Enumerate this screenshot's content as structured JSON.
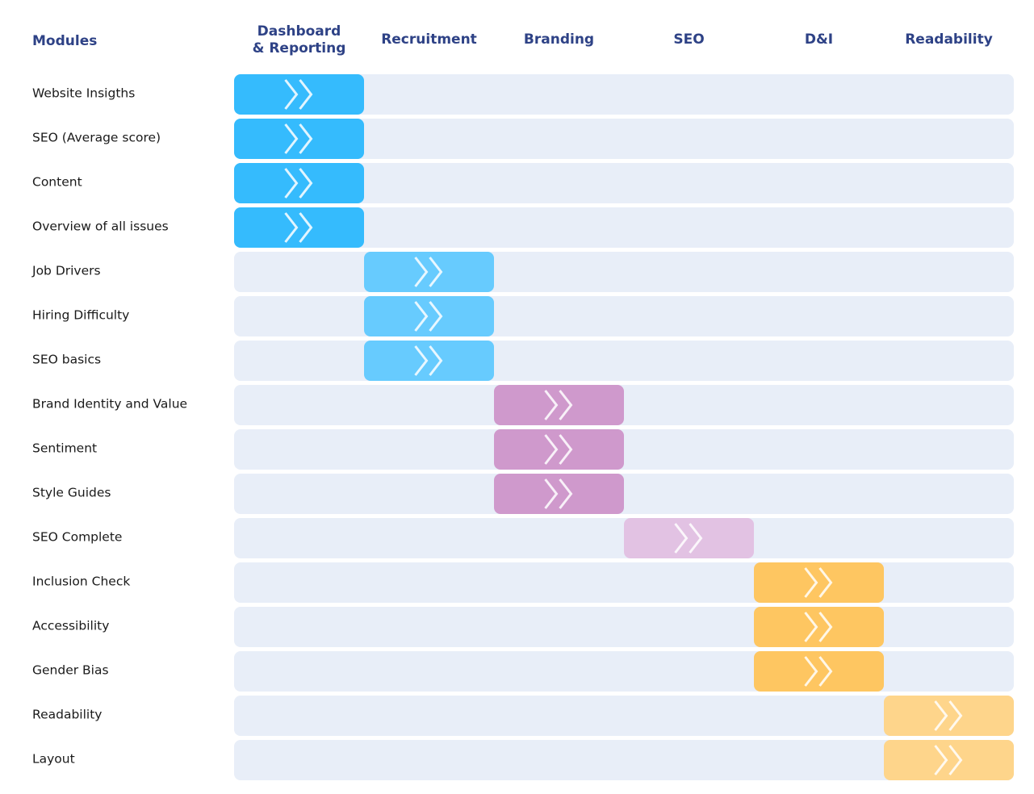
{
  "header": {
    "title": "Modules"
  },
  "columns": [
    {
      "lines": [
        "Dashboard",
        "& Reporting"
      ],
      "color": "#35bbfd"
    },
    {
      "lines": [
        "Recruitment"
      ],
      "color": "#67cbfe"
    },
    {
      "lines": [
        "Branding"
      ],
      "color": "#cf99cc"
    },
    {
      "lines": [
        "SEO"
      ],
      "color": "#e2c2e3"
    },
    {
      "lines": [
        "D&I"
      ],
      "color": "#fec661"
    },
    {
      "lines": [
        "Readability"
      ],
      "color": "#fed58b"
    }
  ],
  "rows": [
    {
      "label": "Website Insigths",
      "column": 0
    },
    {
      "label": "SEO (Average score)",
      "column": 0
    },
    {
      "label": "Content",
      "column": 0
    },
    {
      "label": "Overview of all issues",
      "column": 0
    },
    {
      "label": "Job Drivers",
      "column": 1
    },
    {
      "label": "Hiring Difficulty",
      "column": 1
    },
    {
      "label": "SEO basics",
      "column": 1
    },
    {
      "label": "Brand Identity and Value",
      "column": 2
    },
    {
      "label": "Sentiment",
      "column": 2
    },
    {
      "label": "Style Guides",
      "column": 2
    },
    {
      "label": "SEO Complete",
      "column": 3
    },
    {
      "label": "Inclusion Check",
      "column": 4
    },
    {
      "label": "Accessibility",
      "column": 4
    },
    {
      "label": "Gender Bias",
      "column": 4
    },
    {
      "label": "Readability",
      "column": 5
    },
    {
      "label": "Layout",
      "column": 5
    }
  ]
}
